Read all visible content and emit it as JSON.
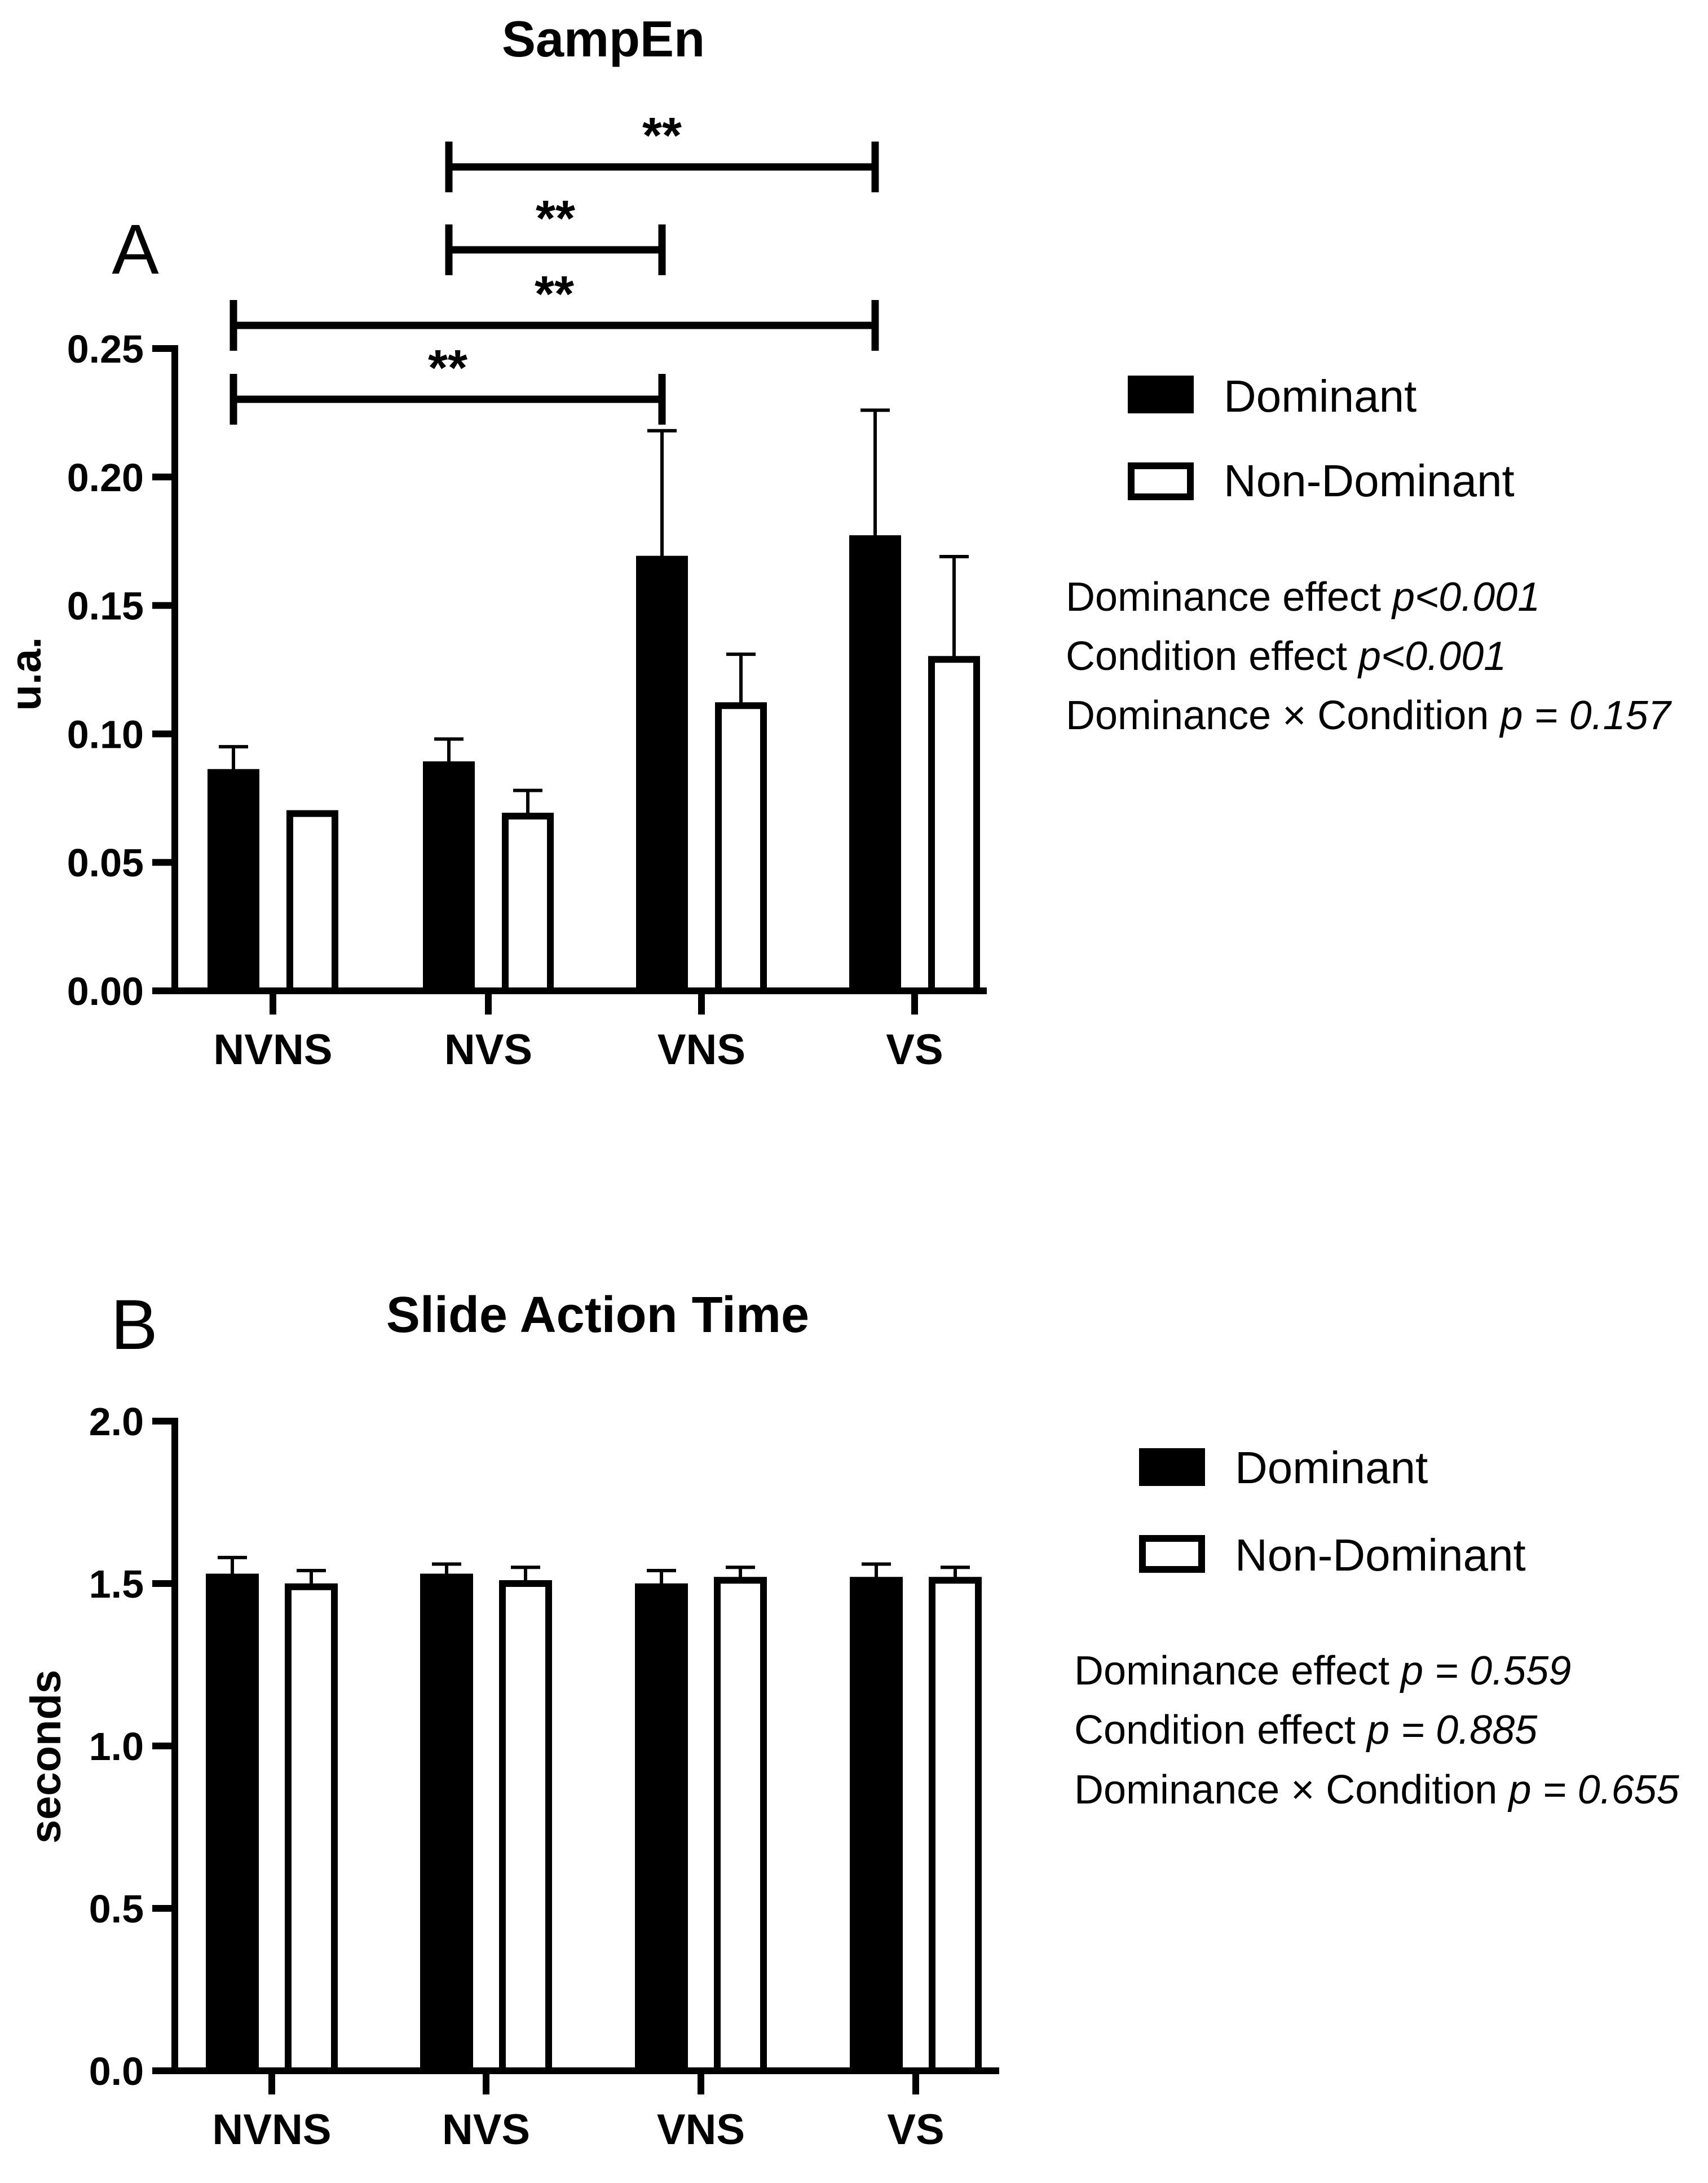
{
  "chart_data": [
    {
      "panel": "A",
      "type": "bar",
      "title": "SampEn",
      "ylabel": "u.a.",
      "xlabel": "",
      "ylim": [
        0,
        0.25
      ],
      "yticks": [
        "0.00",
        "0.05",
        "0.10",
        "0.15",
        "0.20",
        "0.25"
      ],
      "categories": [
        "NVNS",
        "NVS",
        "VNS",
        "VS"
      ],
      "series": [
        {
          "name": "Dominant",
          "fill": "#000000",
          "values": [
            0.085,
            0.088,
            0.168,
            0.176
          ],
          "errors": [
            0.01,
            0.01,
            0.05,
            0.05
          ]
        },
        {
          "name": "Non-Dominant",
          "fill": "#ffffff",
          "values": [
            0.069,
            0.068,
            0.111,
            0.129
          ],
          "errors": [
            0.0,
            0.01,
            0.02,
            0.04
          ]
        }
      ],
      "significance": [
        {
          "from": "NVNS",
          "to": "VNS",
          "label": "**"
        },
        {
          "from": "NVNS",
          "to": "VS",
          "label": "**"
        },
        {
          "from": "NVS",
          "to": "VNS",
          "label": "**"
        },
        {
          "from": "NVS",
          "to": "VS",
          "label": "**"
        }
      ],
      "stats": [
        {
          "label": "Dominance effect",
          "p": "p<0.001"
        },
        {
          "label": "Condition effect",
          "p": "p<0.001"
        },
        {
          "label": "Dominance × Condition",
          "p": "p = 0.157"
        }
      ]
    },
    {
      "panel": "B",
      "type": "bar",
      "title": "Slide Action Time",
      "ylabel": "seconds",
      "xlabel": "",
      "ylim": [
        0,
        2.0
      ],
      "yticks": [
        "0.0",
        "0.5",
        "1.0",
        "1.5",
        "2.0"
      ],
      "categories": [
        "NVNS",
        "NVS",
        "VNS",
        "VS"
      ],
      "series": [
        {
          "name": "Dominant",
          "fill": "#000000",
          "values": [
            1.52,
            1.52,
            1.49,
            1.51
          ],
          "errors": [
            0.06,
            0.04,
            0.05,
            0.05
          ]
        },
        {
          "name": "Non-Dominant",
          "fill": "#ffffff",
          "values": [
            1.49,
            1.5,
            1.51,
            1.51
          ],
          "errors": [
            0.05,
            0.05,
            0.04,
            0.04
          ]
        }
      ],
      "significance": [],
      "stats": [
        {
          "label": "Dominance effect",
          "p": "p = 0.559"
        },
        {
          "label": "Condition effect",
          "p": "p = 0.885"
        },
        {
          "label": "Dominance × Condition",
          "p": "p = 0.655"
        }
      ]
    }
  ]
}
